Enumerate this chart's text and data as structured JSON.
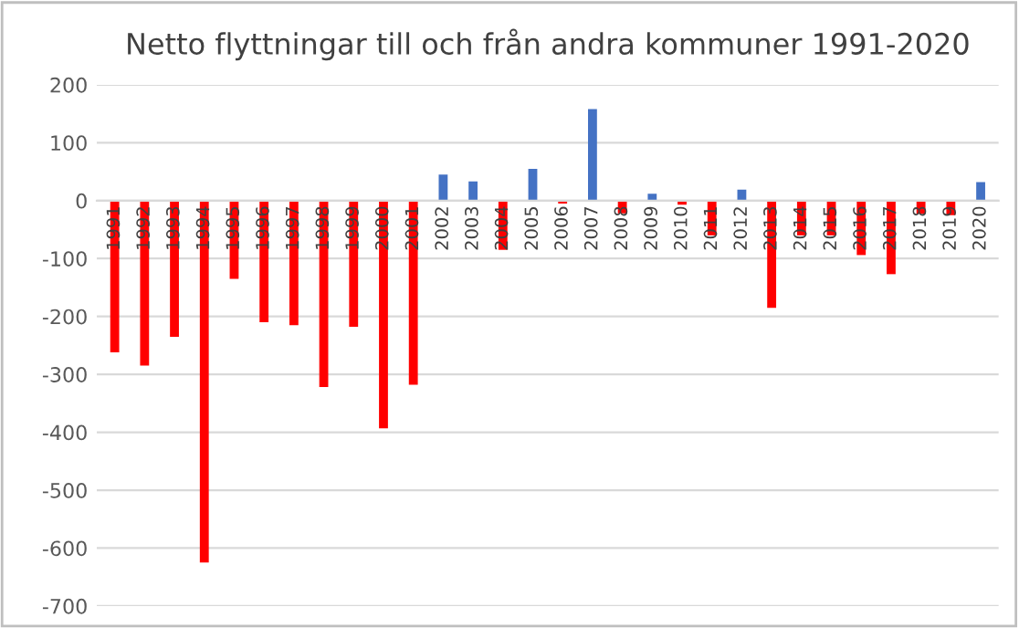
{
  "chart_data": {
    "type": "bar",
    "title": "Netto flyttningar till och från andra kommuner 1991-2020",
    "categories": [
      "1991",
      "1992",
      "1993",
      "1994",
      "1995",
      "1996",
      "1997",
      "1998",
      "1999",
      "2000",
      "2001",
      "2002",
      "2003",
      "2004",
      "2005",
      "2006",
      "2007",
      "2008",
      "2009",
      "2010",
      "2011",
      "2012",
      "2013",
      "2014",
      "2015",
      "2016",
      "2017",
      "2018",
      "2019",
      "2020"
    ],
    "values": [
      -262,
      -285,
      -235,
      -625,
      -135,
      -210,
      -215,
      -322,
      -218,
      -393,
      -318,
      45,
      33,
      -85,
      55,
      -5,
      158,
      -22,
      12,
      -7,
      -60,
      19,
      -185,
      -60,
      -60,
      -94,
      -127,
      -23,
      -25,
      32
    ],
    "colors": [
      "#ff0000",
      "#ff0000",
      "#ff0000",
      "#ff0000",
      "#ff0000",
      "#ff0000",
      "#ff0000",
      "#ff0000",
      "#ff0000",
      "#ff0000",
      "#ff0000",
      "#4472c4",
      "#4472c4",
      "#ff0000",
      "#4472c4",
      "#ff0000",
      "#4472c4",
      "#ff0000",
      "#4472c4",
      "#ff0000",
      "#ff0000",
      "#4472c4",
      "#ff0000",
      "#ff0000",
      "#ff0000",
      "#ff0000",
      "#ff0000",
      "#ff0000",
      "#ff0000",
      "#4472c4"
    ],
    "ylim": [
      -700,
      200
    ],
    "yticks": [
      -700,
      -600,
      -500,
      -400,
      -300,
      -200,
      -100,
      0,
      100,
      200
    ],
    "grid": "y"
  }
}
